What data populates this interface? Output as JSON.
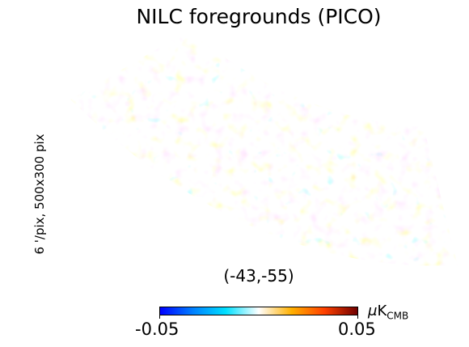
{
  "title": "NILC foregrounds (PICO)",
  "side_label": "6 '/pix,   500x300 pix",
  "coordinates": "(-43,-55)",
  "colorbar": {
    "min_label": "-0.05",
    "max_label": "0.05",
    "unit_prefix": "μ",
    "unit_main": "K",
    "unit_sub": "CMB",
    "colors": [
      "#0000ff",
      "#0080ff",
      "#00e0ff",
      "#ffffff",
      "#ffb000",
      "#ff4000",
      "#700000"
    ]
  },
  "map": {
    "cyan": "#6fdcf0",
    "orange": "#ffc040",
    "background": "#ffffff"
  }
}
